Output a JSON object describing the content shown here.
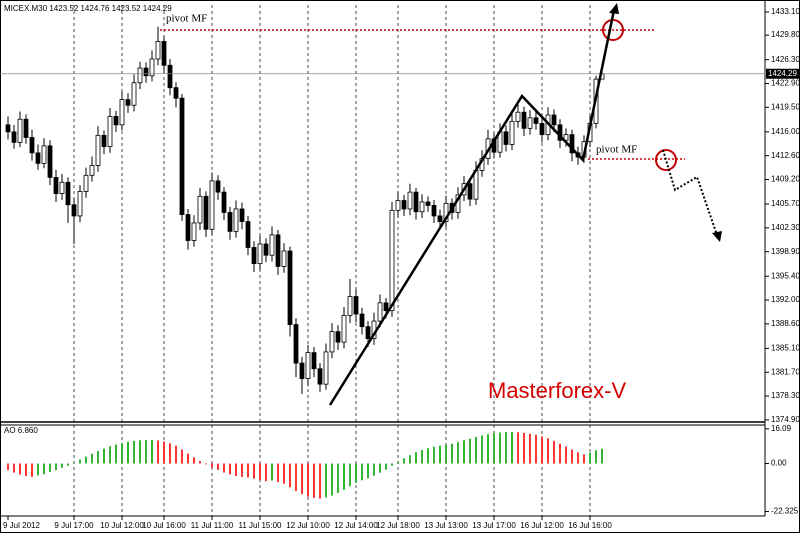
{
  "chart_data": [
    {
      "type": "candlestick",
      "title": "MICEX.M30  1423.52 1424.76 1423.52 1424.29",
      "categories": [
        "9 Jul 2012",
        null,
        null,
        null,
        null,
        null,
        null,
        null,
        null,
        null,
        null,
        "9 Jul 17:00",
        null,
        null,
        null,
        null,
        null,
        null,
        null,
        "10 Jul 12:00",
        null,
        null,
        null,
        null,
        null,
        null,
        "10 Jul 16:00",
        null,
        null,
        null,
        null,
        null,
        null,
        null,
        "11 Jul 11:00",
        null,
        null,
        null,
        null,
        null,
        null,
        null,
        "11 Jul 15:00",
        null,
        null,
        null,
        null,
        null,
        null,
        null,
        "12 Jul 10:00",
        null,
        null,
        null,
        null,
        null,
        null,
        null,
        "12 Jul 14:00",
        null,
        null,
        null,
        null,
        null,
        null,
        "12 Jul 18:00",
        null,
        null,
        null,
        null,
        null,
        null,
        null,
        "13 Jul 13:00",
        null,
        null,
        null,
        null,
        null,
        null,
        null,
        "13 Jul 17:00",
        null,
        null,
        null,
        null,
        null,
        null,
        null,
        "16 Jul 12:00",
        null,
        null,
        null,
        null,
        null,
        null,
        null,
        "16 Jul 16:00",
        null,
        null
      ],
      "open": [
        1417.0,
        1416.0,
        1414.5,
        1417.8,
        1415.2,
        1413.0,
        1411.5,
        1414.0,
        1409.5,
        1407.2,
        1408.8,
        1405.6,
        1404.0,
        1407.5,
        1409.8,
        1411.2,
        1415.5,
        1413.9,
        1418.2,
        1417.0,
        1420.6,
        1419.8,
        1423.0,
        1425.1,
        1424.0,
        1426.4,
        1428.9,
        1425.5,
        1422.3,
        1420.8,
        1404.2,
        1400.5,
        1403.0,
        1406.8,
        1402.1,
        1409.0,
        1407.4,
        1404.5,
        1401.8,
        1405.0,
        1403.2,
        1399.5,
        1397.2,
        1400.0,
        1398.4,
        1401.3,
        1396.8,
        1399.0,
        1388.5,
        1383.0,
        1380.8,
        1384.5,
        1382.2,
        1380.0,
        1384.6,
        1387.5,
        1386.0,
        1389.8,
        1392.5,
        1390.0,
        1388.2,
        1386.5,
        1389.0,
        1391.6,
        1390.5,
        1404.8,
        1406.2,
        1405.0,
        1407.4,
        1404.6,
        1406.0,
        1405.5,
        1404.0,
        1403.2,
        1405.8,
        1404.5,
        1407.0,
        1408.6,
        1406.4,
        1410.5,
        1412.2,
        1415.0,
        1413.1,
        1416.0,
        1414.2,
        1417.5,
        1418.8,
        1416.5,
        1418.0,
        1417.2,
        1415.6,
        1418.4,
        1417.0,
        1414.8,
        1415.6,
        1413.0,
        1412.4,
        1414.6,
        1417.2,
        1423.52
      ],
      "high": [
        1418.2,
        1417.0,
        1418.9,
        1418.5,
        1416.3,
        1414.2,
        1415.1,
        1414.8,
        1410.6,
        1410.0,
        1409.5,
        1406.5,
        1408.4,
        1410.9,
        1412.5,
        1416.8,
        1416.2,
        1419.4,
        1419.0,
        1421.8,
        1421.5,
        1424.2,
        1426.0,
        1425.9,
        1427.6,
        1431.0,
        1429.6,
        1426.4,
        1423.1,
        1421.4,
        1405.0,
        1404.1,
        1408.0,
        1407.5,
        1410.2,
        1409.8,
        1408.1,
        1405.3,
        1406.2,
        1405.9,
        1404.0,
        1400.4,
        1401.2,
        1400.8,
        1402.5,
        1402.0,
        1400.1,
        1399.6,
        1389.4,
        1383.9,
        1385.6,
        1385.3,
        1383.0,
        1385.8,
        1388.7,
        1388.4,
        1391.0,
        1395.0,
        1393.6,
        1390.9,
        1389.0,
        1390.2,
        1392.8,
        1392.3,
        1406.0,
        1407.5,
        1407.0,
        1408.6,
        1408.0,
        1407.1,
        1406.8,
        1406.3,
        1404.9,
        1406.9,
        1406.5,
        1408.1,
        1409.7,
        1409.4,
        1411.8,
        1413.4,
        1416.3,
        1415.8,
        1417.2,
        1416.9,
        1418.6,
        1420.5,
        1419.6,
        1419.1,
        1418.9,
        1418.0,
        1419.5,
        1419.2,
        1417.8,
        1416.5,
        1416.3,
        1413.9,
        1415.5,
        1418.4,
        1424.0,
        1424.76
      ],
      "low": [
        1414.9,
        1413.6,
        1413.8,
        1414.3,
        1411.9,
        1410.6,
        1410.8,
        1408.4,
        1406.0,
        1406.3,
        1403.0,
        1400.0,
        1403.1,
        1406.6,
        1408.9,
        1410.3,
        1412.8,
        1413.0,
        1416.0,
        1416.2,
        1418.7,
        1418.9,
        1422.1,
        1423.0,
        1423.2,
        1425.5,
        1424.4,
        1421.2,
        1419.5,
        1403.3,
        1399.2,
        1399.6,
        1402.0,
        1401.0,
        1401.3,
        1406.3,
        1403.4,
        1400.6,
        1400.9,
        1402.1,
        1398.4,
        1396.0,
        1396.3,
        1397.4,
        1397.5,
        1395.6,
        1395.9,
        1386.8,
        1381.0,
        1378.6,
        1379.7,
        1381.0,
        1378.9,
        1379.2,
        1383.7,
        1384.9,
        1385.1,
        1388.7,
        1388.8,
        1387.1,
        1385.3,
        1385.6,
        1388.1,
        1389.4,
        1389.6,
        1403.8,
        1404.0,
        1404.1,
        1403.5,
        1403.7,
        1404.6,
        1403.0,
        1402.1,
        1402.4,
        1403.5,
        1403.6,
        1406.1,
        1405.4,
        1405.6,
        1409.6,
        1411.3,
        1412.2,
        1412.3,
        1413.2,
        1413.4,
        1416.6,
        1415.4,
        1415.6,
        1416.3,
        1414.5,
        1414.8,
        1416.0,
        1413.7,
        1413.9,
        1411.8,
        1411.3,
        1411.6,
        1413.8,
        1416.5,
        1423.52
      ],
      "close": [
        1416.0,
        1414.5,
        1417.8,
        1415.2,
        1413.0,
        1411.5,
        1414.0,
        1409.5,
        1407.2,
        1408.8,
        1405.6,
        1404.0,
        1407.5,
        1409.8,
        1411.2,
        1415.5,
        1413.9,
        1418.2,
        1417.0,
        1420.6,
        1419.8,
        1423.0,
        1425.1,
        1424.0,
        1426.4,
        1428.9,
        1425.5,
        1422.3,
        1420.8,
        1404.2,
        1400.5,
        1403.0,
        1406.8,
        1402.1,
        1409.0,
        1407.4,
        1404.5,
        1401.8,
        1405.0,
        1403.2,
        1399.5,
        1397.2,
        1400.0,
        1398.4,
        1401.3,
        1396.8,
        1399.0,
        1388.5,
        1383.0,
        1380.8,
        1384.5,
        1382.2,
        1380.0,
        1384.6,
        1387.5,
        1386.0,
        1389.8,
        1392.5,
        1390.0,
        1388.2,
        1386.5,
        1389.0,
        1391.6,
        1390.5,
        1404.8,
        1406.2,
        1405.0,
        1407.4,
        1404.6,
        1406.0,
        1405.5,
        1404.0,
        1403.2,
        1405.8,
        1404.5,
        1407.0,
        1408.6,
        1406.4,
        1410.5,
        1412.2,
        1415.0,
        1413.1,
        1416.0,
        1414.2,
        1417.5,
        1418.8,
        1416.5,
        1418.0,
        1417.2,
        1415.6,
        1418.4,
        1417.0,
        1414.8,
        1415.6,
        1413.0,
        1412.4,
        1414.6,
        1417.2,
        1423.52,
        1424.29
      ],
      "up_color": "#ffffff",
      "down_color": "#000000",
      "color": "#000000",
      "ylim": [
        1374.6,
        1434.1
      ],
      "yticks": [
        {
          "value": 1433.1,
          "label": "1433.10"
        },
        {
          "value": 1429.8,
          "label": "1429.80"
        },
        {
          "value": 1426.3,
          "label": "1426.30"
        },
        {
          "value": 1422.9,
          "label": "1422.90"
        },
        {
          "value": 1419.5,
          "label": "1419.50"
        },
        {
          "value": 1416,
          "label": "1416.00"
        },
        {
          "value": 1412.6,
          "label": "1412.60"
        },
        {
          "value": 1409.2,
          "label": "1409.20"
        },
        {
          "value": 1405.7,
          "label": "1405.70"
        },
        {
          "value": 1402.3,
          "label": "1402.30"
        },
        {
          "value": 1398.9,
          "label": "1398.90"
        },
        {
          "value": 1395.4,
          "label": "1395.40"
        },
        {
          "value": 1392,
          "label": "1392.00"
        },
        {
          "value": 1388.6,
          "label": "1388.60"
        },
        {
          "value": 1385.1,
          "label": "1385.10"
        },
        {
          "value": 1381.7,
          "label": "1381.70"
        },
        {
          "value": 1378.3,
          "label": "1378.30"
        },
        {
          "value": 1374.9,
          "label": "1374.90"
        }
      ],
      "current_price": 1424.29,
      "grid": true,
      "annotations": [
        "pivot MF",
        "pivot MF",
        "Masterforex-V"
      ]
    },
    {
      "type": "bar",
      "title": "AO 6.860",
      "values": [
        -3.0,
        -4.2,
        -5.1,
        -5.8,
        -6.2,
        -5.5,
        -4.9,
        -4.0,
        -3.1,
        -2.0,
        -1.0,
        0.3,
        1.8,
        3.2,
        4.5,
        5.8,
        6.9,
        8.0,
        8.8,
        9.5,
        10.1,
        10.5,
        10.8,
        10.9,
        11.0,
        10.7,
        10.2,
        9.4,
        8.3,
        6.5,
        4.6,
        2.9,
        1.2,
        -0.4,
        -1.8,
        -3.0,
        -4.2,
        -5.1,
        -5.8,
        -6.2,
        -6.5,
        -7.0,
        -7.6,
        -8.2,
        -7.9,
        -8.6,
        -9.4,
        -11.0,
        -12.8,
        -14.3,
        -15.4,
        -16.0,
        -16.3,
        -15.8,
        -14.9,
        -13.7,
        -12.2,
        -10.6,
        -9.0,
        -7.8,
        -6.9,
        -5.7,
        -4.3,
        -2.9,
        -1.0,
        0.8,
        2.4,
        3.9,
        5.2,
        6.3,
        7.1,
        7.8,
        8.3,
        8.7,
        9.2,
        9.9,
        10.8,
        11.5,
        12.3,
        13.0,
        13.6,
        14.1,
        14.4,
        14.6,
        14.7,
        14.5,
        14.2,
        13.8,
        13.3,
        12.6,
        11.7,
        10.5,
        9.2,
        7.9,
        6.5,
        5.2,
        4.3,
        5.0,
        6.2,
        6.86
      ],
      "up_color": "#00a000",
      "down_color": "#ff0000",
      "ylim": [
        -24.4,
        17.9
      ],
      "yticks": [
        16.09,
        {
          "value": 0,
          "label": "0.00"
        },
        -22.325
      ],
      "grid": true
    }
  ]
}
